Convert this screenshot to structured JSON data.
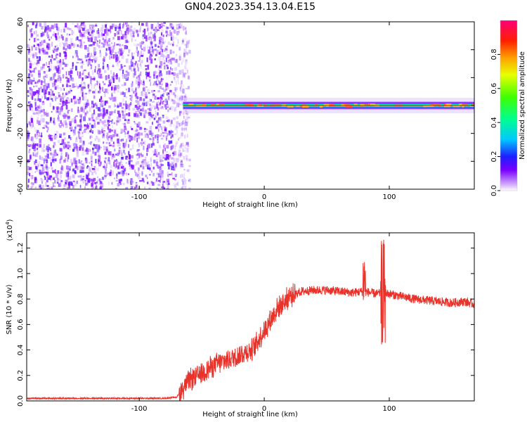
{
  "title": "GN04.2023.354.13.04.E15",
  "chart_data": [
    {
      "type": "heatmap",
      "xlabel": "Height of straight line (km)",
      "ylabel": "Frequency (Hz)",
      "xlim": [
        -190,
        168
      ],
      "ylim": [
        -60,
        60
      ],
      "x_ticks": [
        -100,
        0,
        100
      ],
      "y_ticks": [
        -60,
        -40,
        -20,
        0,
        20,
        40,
        60
      ],
      "noise_region_x": [
        -190,
        -65
      ],
      "signal_band": {
        "x_start": -65,
        "x_end": 168,
        "frequency_center": 0,
        "frequency_halfwidth": 3
      },
      "colorbar": {
        "label": "Normalized spectral amplitude",
        "range": [
          0,
          1
        ],
        "ticks": [
          0.0,
          0.2,
          0.4,
          0.6,
          0.8
        ]
      }
    },
    {
      "type": "line",
      "xlabel": "Height of straight line (km)",
      "ylabel": "SNR (10 * v/v)",
      "y_multiplier": "(x10",
      "y_multiplier_exp": "4",
      "y_multiplier_close": ")",
      "xlim": [
        -190,
        168
      ],
      "ylim": [
        0,
        1.32
      ],
      "x_ticks": [
        -100,
        0,
        100
      ],
      "y_ticks": [
        0.0,
        0.2,
        0.4,
        0.6,
        0.8,
        1.0,
        1.2
      ],
      "series": [
        {
          "color": "#e8322a",
          "x": [
            -190,
            -150,
            -110,
            -80,
            -70,
            -65,
            -60,
            -50,
            -40,
            -30,
            -20,
            -10,
            0,
            10,
            20,
            30,
            40,
            50,
            60,
            70,
            80,
            90,
            95,
            100,
            110,
            120,
            130,
            140,
            150,
            160,
            168
          ],
          "y": [
            0.02,
            0.02,
            0.02,
            0.02,
            0.03,
            0.1,
            0.16,
            0.22,
            0.28,
            0.32,
            0.36,
            0.4,
            0.55,
            0.72,
            0.82,
            0.86,
            0.87,
            0.87,
            0.86,
            0.85,
            0.86,
            0.84,
            0.85,
            0.84,
            0.82,
            0.8,
            0.79,
            0.78,
            0.77,
            0.78,
            0.76
          ]
        }
      ]
    }
  ]
}
